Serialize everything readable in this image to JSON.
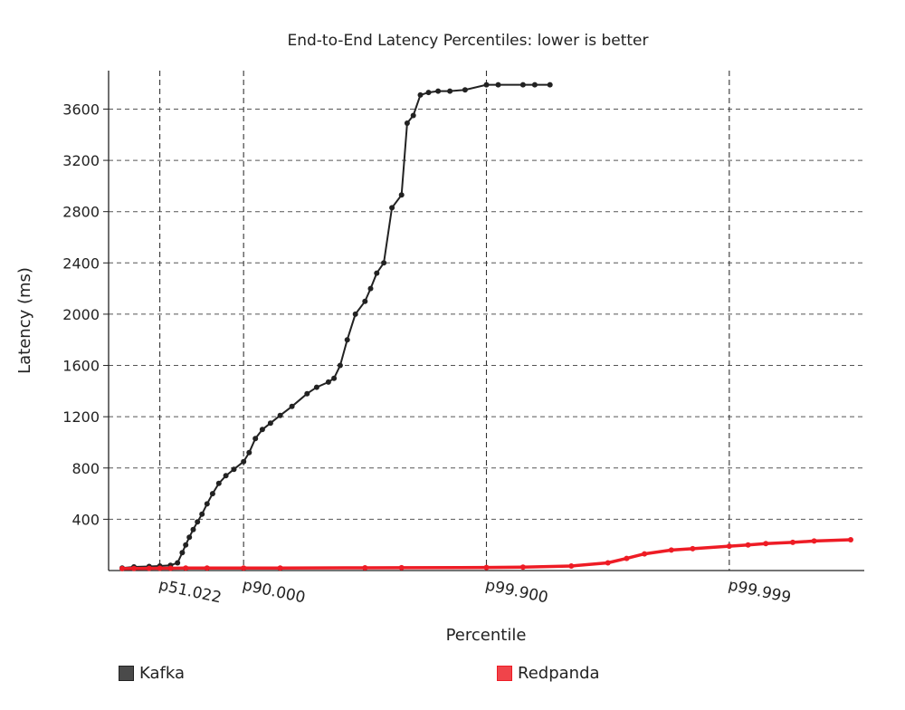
{
  "chart_data": {
    "type": "line",
    "title": "End-to-End Latency Percentiles: lower is better",
    "xlabel": "Percentile",
    "ylabel": "Latency (ms)",
    "x_scale": "log-complement (percentile)",
    "xlim": [
      0,
      99.9999
    ],
    "ylim": [
      0,
      3900
    ],
    "yticks": [
      400,
      800,
      1200,
      1600,
      2000,
      2400,
      2800,
      3200,
      3600
    ],
    "xticks": [
      {
        "label": "p51.022",
        "value": 51.022
      },
      {
        "label": "p90.000",
        "value": 90.0
      },
      {
        "label": "p99.900",
        "value": 99.9
      },
      {
        "label": "p99.999",
        "value": 99.999
      }
    ],
    "grid": "dashed",
    "legend_position": "bottom",
    "series": [
      {
        "name": "Kafka",
        "color": "#222222",
        "x": [
          0,
          20,
          40,
          51.022,
          60,
          65,
          68,
          70,
          72,
          74,
          76,
          78,
          80,
          82,
          84,
          86,
          88,
          90,
          91,
          92,
          93,
          94,
          95,
          96,
          97,
          97.5,
          98,
          98.2,
          98.4,
          98.6,
          98.8,
          99.0,
          99.1,
          99.2,
          99.3,
          99.4,
          99.5,
          99.55,
          99.6,
          99.65,
          99.7,
          99.75,
          99.8,
          99.85,
          99.9,
          99.92,
          99.95,
          99.96,
          99.97
        ],
        "y": [
          20,
          28,
          32,
          35,
          40,
          60,
          140,
          200,
          260,
          320,
          380,
          440,
          520,
          600,
          680,
          740,
          790,
          850,
          920,
          1030,
          1100,
          1150,
          1210,
          1280,
          1380,
          1430,
          1470,
          1500,
          1600,
          1800,
          2000,
          2100,
          2200,
          2320,
          2400,
          2830,
          2930,
          3490,
          3550,
          3710,
          3730,
          3740,
          3740,
          3750,
          3790,
          3790,
          3790,
          3790,
          3790
        ]
      },
      {
        "name": "Redpanda",
        "color": "#ee1c25",
        "x": [
          0,
          20,
          40,
          51.022,
          60,
          70,
          80,
          90,
          95,
          99,
          99.5,
          99.9,
          99.95,
          99.98,
          99.99,
          99.993,
          99.995,
          99.997,
          99.998,
          99.999,
          99.9993,
          99.9995,
          99.9997,
          99.9998,
          99.9999
        ],
        "y": [
          15,
          16,
          17,
          18,
          18,
          19,
          19,
          20,
          20,
          21,
          22,
          24,
          26,
          35,
          60,
          95,
          130,
          160,
          170,
          190,
          200,
          210,
          220,
          230,
          240
        ]
      }
    ]
  }
}
